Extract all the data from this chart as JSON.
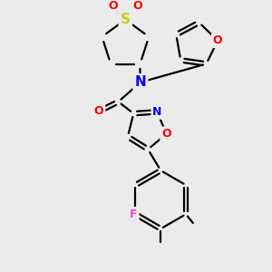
{
  "background_color": "#ebebeb",
  "bond_color": "#000000",
  "atom_colors": {
    "S": "#cccc00",
    "O": "#ff0000",
    "N": "#0000ff",
    "F": "#ff44cc",
    "C": "#000000"
  },
  "figsize": [
    3.0,
    3.0
  ],
  "dpi": 100
}
